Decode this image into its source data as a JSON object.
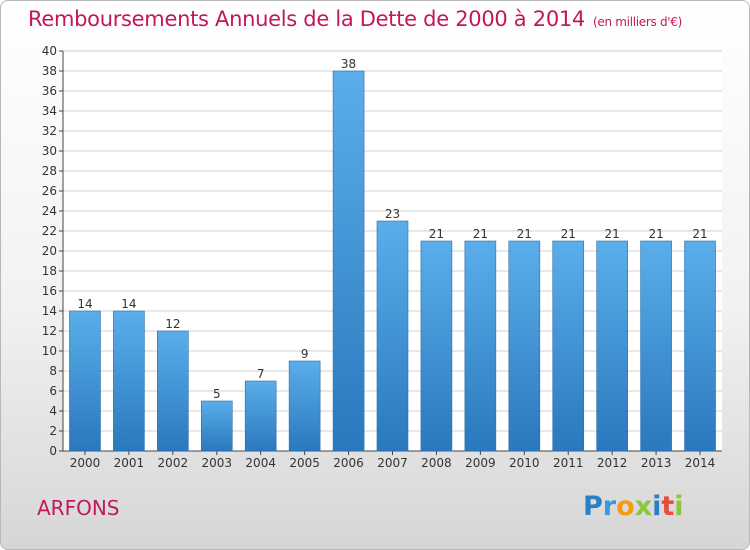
{
  "title": "Remboursements Annuels de la Dette de 2000 à 2014",
  "unit": "(en milliers d'€)",
  "commune": "ARFONS",
  "logo": [
    "P",
    "r",
    "o",
    "x",
    "i",
    "t",
    "i"
  ],
  "colors": {
    "bar": "#4a9ee0",
    "bar_dark": "#2f7dc2",
    "title": "#c2185b",
    "grid": "#d0d0d0"
  },
  "chart_data": {
    "type": "bar",
    "categories": [
      "2000",
      "2001",
      "2002",
      "2003",
      "2004",
      "2005",
      "2006",
      "2007",
      "2008",
      "2009",
      "2010",
      "2011",
      "2012",
      "2013",
      "2014"
    ],
    "values": [
      14,
      14,
      12,
      5,
      7,
      9,
      38,
      23,
      21,
      21,
      21,
      21,
      21,
      21,
      21
    ],
    "ylim": [
      0,
      40
    ],
    "ytick_step": 2,
    "grid": true,
    "title": "Remboursements Annuels de la Dette de 2000 à 2014",
    "xlabel": "",
    "ylabel": ""
  }
}
